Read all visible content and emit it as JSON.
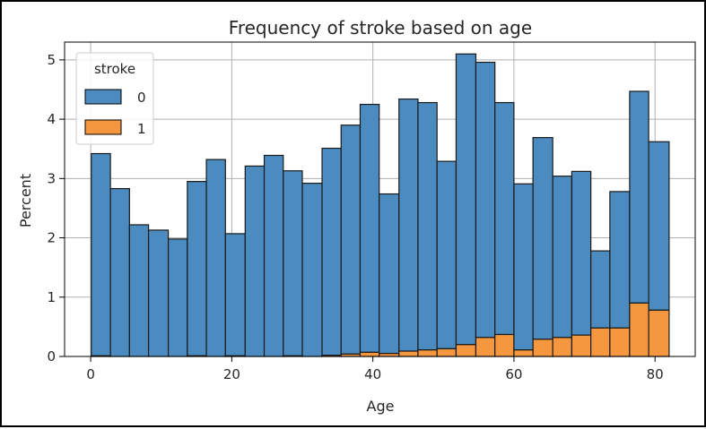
{
  "chart_data": {
    "type": "bar",
    "stacked": true,
    "title": "Frequency of stroke based on age",
    "xlabel": "Age",
    "ylabel": "Percent",
    "xlim": [
      -3.7,
      85.7
    ],
    "ylim": [
      0,
      5.3
    ],
    "xticks": [
      0,
      20,
      40,
      60,
      80
    ],
    "yticks": [
      0,
      1,
      2,
      3,
      4,
      5
    ],
    "grid": true,
    "legend": {
      "title": "stroke",
      "position": "top-left",
      "entries": [
        "0",
        "1"
      ]
    },
    "bin_edges": [
      0.08,
      2.8,
      5.5,
      8.2,
      11.0,
      13.7,
      16.4,
      19.1,
      21.9,
      24.6,
      27.3,
      30.0,
      32.8,
      35.5,
      38.2,
      40.9,
      43.7,
      46.4,
      49.1,
      51.8,
      54.6,
      57.3,
      60.0,
      62.7,
      65.5,
      68.2,
      70.9,
      73.6,
      76.4,
      79.1,
      82.0
    ],
    "series": [
      {
        "name": "0",
        "color": "#4c8bbf",
        "values": [
          3.41,
          2.83,
          2.22,
          2.13,
          1.98,
          2.94,
          3.32,
          2.06,
          3.21,
          3.39,
          3.12,
          2.92,
          3.49,
          3.86,
          4.18,
          2.69,
          4.25,
          4.17,
          3.16,
          4.9,
          4.64,
          3.91,
          2.8,
          3.4,
          2.72,
          2.76,
          1.3,
          2.3,
          3.57,
          2.84
        ]
      },
      {
        "name": "1",
        "color": "#f5973f",
        "values": [
          0.01,
          0.0,
          0.0,
          0.0,
          0.0,
          0.01,
          0.0,
          0.01,
          0.0,
          0.0,
          0.01,
          0.0,
          0.02,
          0.04,
          0.07,
          0.05,
          0.09,
          0.11,
          0.13,
          0.2,
          0.32,
          0.37,
          0.11,
          0.29,
          0.32,
          0.36,
          0.48,
          0.48,
          0.9,
          0.78
        ]
      }
    ]
  }
}
